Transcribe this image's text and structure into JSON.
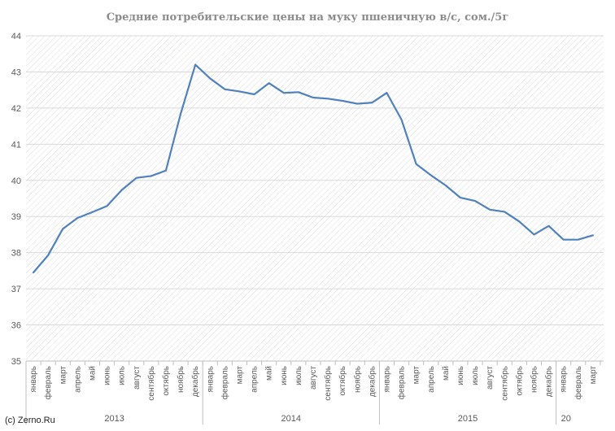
{
  "chart_data": {
    "type": "line",
    "title": "Средние потребительские цены на муку пшеничную в/с, сом./5г",
    "xlabel": "",
    "ylabel": "",
    "ylim": [
      35,
      44
    ],
    "yticks": [
      35,
      36,
      37,
      38,
      39,
      40,
      41,
      42,
      43,
      44
    ],
    "grid": true,
    "legend": "none",
    "line_color": "#4f81bd",
    "categories": [
      "январь",
      "февраль",
      "март",
      "апрель",
      "май",
      "июнь",
      "июль",
      "август",
      "сентябрь",
      "октябрь",
      "ноябрь",
      "декабрь",
      "январь",
      "февраль",
      "март",
      "апрель",
      "май",
      "июнь",
      "июль",
      "август",
      "сентябрь",
      "октябрь",
      "ноябрь",
      "декабрь",
      "январь",
      "февраль",
      "март",
      "апрель",
      "май",
      "июнь",
      "июль",
      "август",
      "сентябрь",
      "октябрь",
      "ноябрь",
      "декабрь",
      "январь",
      "февраль",
      "март"
    ],
    "groups": [
      {
        "label": "2013",
        "count": 12
      },
      {
        "label": "2014",
        "count": 12
      },
      {
        "label": "2015",
        "count": 12
      },
      {
        "label": "20",
        "count": 3
      }
    ],
    "series": [
      {
        "values": [
          37.45,
          37.93,
          38.66,
          38.96,
          39.12,
          39.29,
          39.73,
          40.07,
          40.12,
          40.27,
          41.84,
          43.2,
          42.82,
          42.52,
          42.46,
          42.38,
          42.69,
          42.42,
          42.44,
          42.29,
          42.26,
          42.2,
          42.12,
          42.15,
          42.42,
          41.68,
          40.45,
          40.14,
          39.86,
          39.52,
          39.43,
          39.19,
          39.13,
          38.86,
          38.5,
          38.74,
          38.36,
          38.36,
          38.48
        ]
      }
    ]
  },
  "credit": "(c) Zerno.Ru"
}
